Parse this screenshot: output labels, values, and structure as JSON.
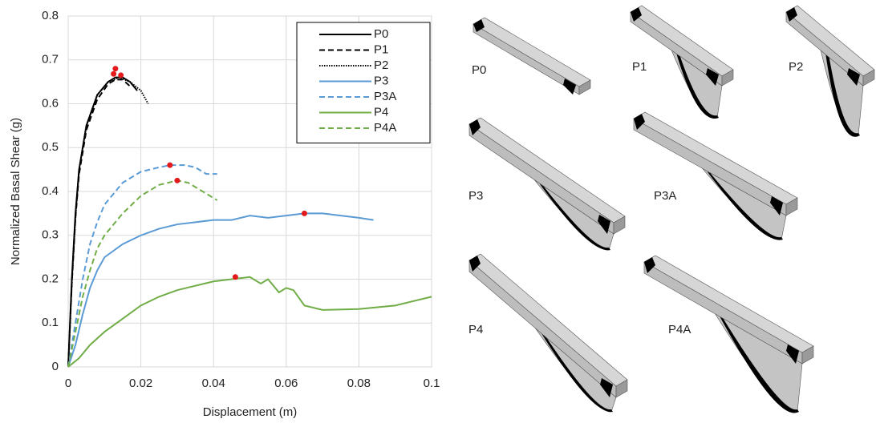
{
  "chart_data": {
    "type": "line",
    "x_label": "Displacement (m)",
    "y_label": "Normalized Basal Shear (g)",
    "xlim": [
      0,
      0.1
    ],
    "ylim": [
      0,
      0.8
    ],
    "xticks": [
      0,
      0.02,
      0.04,
      0.06,
      0.08,
      0.1
    ],
    "yticks": [
      0,
      0.1,
      0.2,
      0.3,
      0.4,
      0.5,
      0.6,
      0.7,
      0.8
    ],
    "grid": true,
    "legend": "upper right",
    "series": [
      {
        "name": "P0",
        "color": "#000000",
        "style": "solid",
        "x": [
          0,
          0.001,
          0.002,
          0.003,
          0.005,
          0.008,
          0.011,
          0.013,
          0.015,
          0.017,
          0.019
        ],
        "values": [
          0,
          0.2,
          0.35,
          0.45,
          0.55,
          0.62,
          0.65,
          0.66,
          0.66,
          0.65,
          0.63
        ]
      },
      {
        "name": "P1",
        "color": "#000000",
        "style": "dashed",
        "x": [
          0,
          0.001,
          0.002,
          0.003,
          0.005,
          0.008,
          0.011,
          0.013,
          0.015,
          0.017
        ],
        "values": [
          0,
          0.19,
          0.34,
          0.44,
          0.54,
          0.61,
          0.645,
          0.655,
          0.655,
          0.64
        ]
      },
      {
        "name": "P2",
        "color": "#000000",
        "style": "dotted",
        "x": [
          0,
          0.001,
          0.002,
          0.003,
          0.005,
          0.008,
          0.011,
          0.014,
          0.017,
          0.02,
          0.022
        ],
        "values": [
          0,
          0.19,
          0.34,
          0.45,
          0.55,
          0.62,
          0.65,
          0.66,
          0.65,
          0.63,
          0.6
        ]
      },
      {
        "name": "P3",
        "color": "#5b9bd5",
        "style": "solid",
        "x": [
          0,
          0.002,
          0.004,
          0.006,
          0.008,
          0.01,
          0.015,
          0.02,
          0.025,
          0.03,
          0.035,
          0.04,
          0.045,
          0.05,
          0.055,
          0.06,
          0.065,
          0.07,
          0.075,
          0.08,
          0.084
        ],
        "values": [
          0,
          0.05,
          0.12,
          0.18,
          0.22,
          0.25,
          0.28,
          0.3,
          0.315,
          0.325,
          0.33,
          0.335,
          0.335,
          0.345,
          0.34,
          0.345,
          0.35,
          0.35,
          0.345,
          0.34,
          0.335
        ]
      },
      {
        "name": "P3A",
        "color": "#5b9bd5",
        "style": "dashed",
        "x": [
          0,
          0.002,
          0.004,
          0.006,
          0.008,
          0.01,
          0.015,
          0.02,
          0.025,
          0.028,
          0.032,
          0.035,
          0.038,
          0.041
        ],
        "values": [
          0,
          0.1,
          0.2,
          0.28,
          0.33,
          0.37,
          0.42,
          0.445,
          0.455,
          0.46,
          0.46,
          0.455,
          0.44,
          0.44
        ]
      },
      {
        "name": "P4",
        "color": "#70ad47",
        "style": "solid",
        "x": [
          0,
          0.003,
          0.006,
          0.01,
          0.015,
          0.02,
          0.025,
          0.03,
          0.035,
          0.04,
          0.045,
          0.05,
          0.053,
          0.055,
          0.058,
          0.06,
          0.062,
          0.065,
          0.07,
          0.08,
          0.09,
          0.1
        ],
        "values": [
          0,
          0.02,
          0.05,
          0.08,
          0.11,
          0.14,
          0.16,
          0.175,
          0.185,
          0.195,
          0.2,
          0.205,
          0.19,
          0.2,
          0.17,
          0.18,
          0.175,
          0.14,
          0.13,
          0.132,
          0.14,
          0.16
        ]
      },
      {
        "name": "P4A",
        "color": "#70ad47",
        "style": "dashed",
        "x": [
          0,
          0.002,
          0.004,
          0.006,
          0.008,
          0.01,
          0.015,
          0.02,
          0.025,
          0.03,
          0.033,
          0.035,
          0.038,
          0.041
        ],
        "values": [
          0,
          0.08,
          0.16,
          0.22,
          0.27,
          0.3,
          0.35,
          0.39,
          0.415,
          0.425,
          0.42,
          0.41,
          0.395,
          0.38
        ]
      }
    ],
    "peak_points": {
      "color": "#e31a1c",
      "x": [
        0.013,
        0.0125,
        0.0145,
        0.028,
        0.03,
        0.065,
        0.046
      ],
      "values": [
        0.68,
        0.668,
        0.665,
        0.46,
        0.425,
        0.35,
        0.205
      ]
    }
  },
  "panels": [
    {
      "label": "P0"
    },
    {
      "label": "P1"
    },
    {
      "label": "P2"
    },
    {
      "label": "P3"
    },
    {
      "label": "P3A"
    },
    {
      "label": "P4"
    },
    {
      "label": "P4A"
    }
  ]
}
